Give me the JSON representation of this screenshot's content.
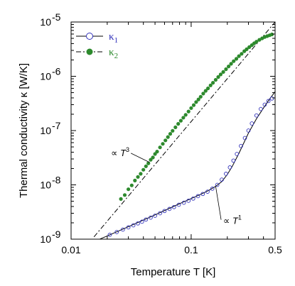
{
  "chart_data": {
    "type": "scatter",
    "x_scale": "log",
    "y_scale": "log",
    "xlim": [
      0.01,
      0.5
    ],
    "ylim": [
      1e-09,
      1e-05
    ],
    "xlabel": "Temperature T [K]",
    "ylabel": "Thermal conductivity κ [W/K]",
    "grid": false,
    "legend_position": "top-left",
    "x_ticks": [
      {
        "value": 0.01,
        "label": "0.01"
      },
      {
        "value": 0.1,
        "label": "0.1"
      },
      {
        "value": 0.5,
        "label": "0.5"
      }
    ],
    "y_ticks": [
      {
        "value": 1e-09,
        "base": "10",
        "exp": "-9"
      },
      {
        "value": 1e-08,
        "base": "10",
        "exp": "-8"
      },
      {
        "value": 1e-07,
        "base": "10",
        "exp": "-7"
      },
      {
        "value": 1e-06,
        "base": "10",
        "exp": "-6"
      },
      {
        "value": 1e-05,
        "base": "10",
        "exp": "-5"
      }
    ],
    "series": [
      {
        "name_base": "κ",
        "name_sub": "1",
        "marker": "open-circle",
        "color": "#3333bb",
        "line_style": "solid",
        "x": [
          0.021,
          0.024,
          0.027,
          0.03,
          0.033,
          0.036,
          0.039,
          0.042,
          0.046,
          0.05,
          0.055,
          0.06,
          0.066,
          0.072,
          0.079,
          0.087,
          0.095,
          0.104,
          0.114,
          0.125,
          0.137,
          0.15,
          0.165,
          0.18,
          0.195,
          0.21,
          0.225,
          0.24,
          0.26,
          0.28,
          0.3,
          0.32,
          0.35,
          0.38,
          0.41,
          0.44,
          0.47
        ],
        "y": [
          1.2e-09,
          1.35e-09,
          1.5e-09,
          1.65e-09,
          1.8e-09,
          1.95e-09,
          2.1e-09,
          2.3e-09,
          2.5e-09,
          2.7e-09,
          3e-09,
          3.3e-09,
          3.6e-09,
          3.9e-09,
          4.3e-09,
          4.7e-09,
          5.1e-09,
          5.6e-09,
          6.2e-09,
          6.8e-09,
          7.5e-09,
          8.5e-09,
          1e-08,
          1.25e-08,
          1.6e-08,
          2.1e-08,
          2.8e-08,
          3.7e-08,
          5.2e-08,
          7.3e-08,
          1e-07,
          1.35e-07,
          1.9e-07,
          2.5e-07,
          3e-07,
          3.5e-07,
          3.9e-07
        ],
        "fit_x": [
          0.0155,
          0.02,
          0.03,
          0.05,
          0.08,
          0.1,
          0.12,
          0.14,
          0.16,
          0.18,
          0.2,
          0.22,
          0.25,
          0.3,
          0.35,
          0.4,
          0.45,
          0.5
        ],
        "fit_y": [
          9e-10,
          1.15e-09,
          1.7e-09,
          2.8e-09,
          4.5e-09,
          5.6e-09,
          6.7e-09,
          7.9e-09,
          9.4e-09,
          1.15e-08,
          1.55e-08,
          2.2e-08,
          3.8e-08,
          9e-08,
          1.65e-07,
          2.6e-07,
          3.8e-07,
          5.2e-07
        ]
      },
      {
        "name_base": "κ",
        "name_sub": "2",
        "marker": "filled-circle",
        "color": "#2d8a2d",
        "line_style": "dash-dot",
        "x": [
          0.026,
          0.028,
          0.03,
          0.032,
          0.034,
          0.036,
          0.038,
          0.04,
          0.042,
          0.044,
          0.046,
          0.048,
          0.05,
          0.052,
          0.055,
          0.058,
          0.061,
          0.064,
          0.067,
          0.07,
          0.074,
          0.078,
          0.082,
          0.086,
          0.09,
          0.095,
          0.1,
          0.105,
          0.11,
          0.115,
          0.12,
          0.126,
          0.132,
          0.138,
          0.145,
          0.152,
          0.16,
          0.168,
          0.176,
          0.185,
          0.195,
          0.205,
          0.215,
          0.226,
          0.238,
          0.25,
          0.263,
          0.277,
          0.29,
          0.305,
          0.32,
          0.335,
          0.35,
          0.37,
          0.39,
          0.41,
          0.43,
          0.45,
          0.47
        ],
        "y": [
          5.5e-09,
          6.5e-09,
          8.3e-09,
          9.8e-09,
          1.2e-08,
          1.4e-08,
          1.6e-08,
          1.9e-08,
          2.2e-08,
          2.5e-08,
          2.9e-08,
          3.2e-08,
          3.7e-08,
          4.1e-08,
          4.9e-08,
          5.7e-08,
          6.6e-08,
          7.6e-08,
          8.7e-08,
          9.9e-08,
          1.15e-07,
          1.33e-07,
          1.52e-07,
          1.73e-07,
          1.95e-07,
          2.25e-07,
          2.6e-07,
          2.95e-07,
          3.35e-07,
          3.75e-07,
          4.2e-07,
          4.8e-07,
          5.4e-07,
          6e-07,
          6.8e-07,
          7.6e-07,
          8.6e-07,
          9.7e-07,
          1.08e-06,
          1.2e-06,
          1.35e-06,
          1.52e-06,
          1.7e-06,
          1.9e-06,
          2.1e-06,
          2.35e-06,
          2.6e-06,
          2.9e-06,
          3.15e-06,
          3.45e-06,
          3.75e-06,
          4.05e-06,
          4.35e-06,
          4.7e-06,
          5e-06,
          5.3e-06,
          5.5e-06,
          5.7e-06,
          5.9e-06
        ],
        "fit_x": [
          0.0155,
          0.5
        ],
        "fit_y": [
          1.1e-09,
          1e-05
        ]
      }
    ],
    "annotations": [
      {
        "prefix": "∝ ",
        "base": "T",
        "exp": "3",
        "x": 0.0215,
        "y": 3.4e-08,
        "anchor": "start"
      },
      {
        "prefix": "∝ ",
        "base": "T",
        "exp": "1",
        "x": 0.185,
        "y": 1.9e-09,
        "anchor": "start"
      }
    ]
  }
}
